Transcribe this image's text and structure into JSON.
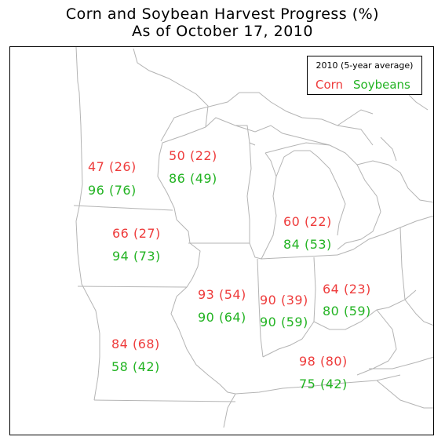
{
  "title": {
    "line1": "Corn and Soybean Harvest Progress (%)",
    "line2": "As of October 17, 2010"
  },
  "legend": {
    "header": "2010 (5-year average)",
    "corn_label": "Corn",
    "soy_label": "Soybeans"
  },
  "colors": {
    "corn": "#ee3b3b",
    "soybeans": "#22b322"
  },
  "states": [
    {
      "corn": "47 (26)",
      "soybeans": "96 (76)"
    },
    {
      "corn": "50 (22)",
      "soybeans": "86 (49)"
    },
    {
      "corn": "66 (27)",
      "soybeans": "94 (73)"
    },
    {
      "corn": "60 (22)",
      "soybeans": "84 (53)"
    },
    {
      "corn": "93 (54)",
      "soybeans": "90 (64)"
    },
    {
      "corn": "90 (39)",
      "soybeans": "90 (59)"
    },
    {
      "corn": "64 (23)",
      "soybeans": "80 (59)"
    },
    {
      "corn": "84 (68)",
      "soybeans": "58 (42)"
    },
    {
      "corn": "98 (80)",
      "soybeans": "75 (42)"
    }
  ]
}
